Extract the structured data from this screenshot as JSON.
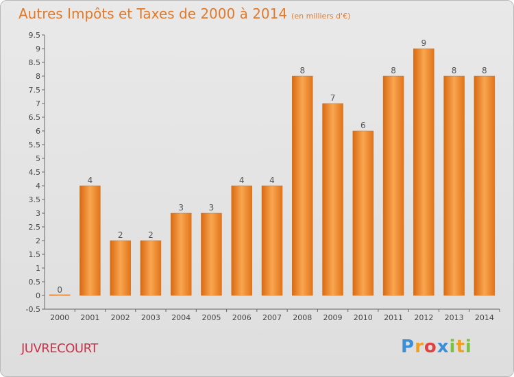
{
  "chart_data": {
    "type": "bar",
    "title": "Autres Impôts et Taxes de 2000 à 2014",
    "unit": "(en milliers d'€)",
    "categories": [
      "2000",
      "2001",
      "2002",
      "2003",
      "2004",
      "2005",
      "2006",
      "2007",
      "2008",
      "2009",
      "2010",
      "2011",
      "2012",
      "2013",
      "2014"
    ],
    "values": [
      0,
      4,
      2,
      2,
      3,
      3,
      4,
      4,
      8,
      7,
      6,
      8,
      9,
      8,
      8
    ],
    "ylim": [
      -0.5,
      9.5
    ],
    "yticks": [
      "9.5",
      "9",
      "8.5",
      "8",
      "7.5",
      "7",
      "6.5",
      "6",
      "5.5",
      "5",
      "4.5",
      "4",
      "3.5",
      "3",
      "2.5",
      "2",
      "1.5",
      "1",
      "0.5",
      "0",
      "-0.5"
    ],
    "grid": false,
    "bar_color": "#f08a2a"
  },
  "commune": "JUVRECOURT",
  "logo": {
    "letters": [
      "P",
      "r",
      "o",
      "x",
      "i",
      "t",
      "i"
    ],
    "colors": [
      "#3a8fd6",
      "#f0a020",
      "#e04040",
      "#3a8fd6",
      "#7cc242",
      "#f0a020",
      "#7cc242"
    ]
  }
}
